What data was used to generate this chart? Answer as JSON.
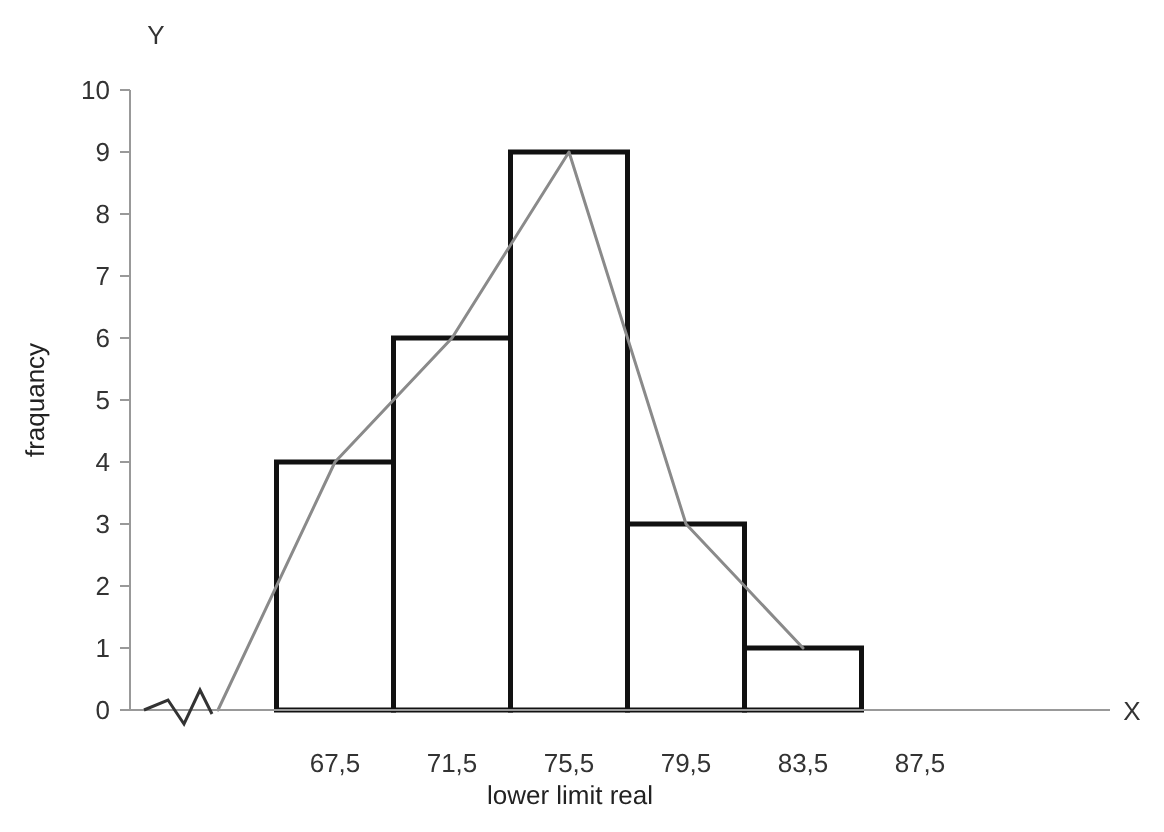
{
  "chart_data": {
    "type": "bar",
    "xlabel": "lower limit real",
    "ylabel": "fraquancy",
    "annotations": [
      "Y",
      "X"
    ],
    "categories": [
      null,
      "67,5",
      "71,5",
      "75,5",
      "79,5",
      "83,5",
      "87,5"
    ],
    "values": [
      null,
      4,
      6,
      9,
      3,
      1,
      null
    ],
    "color": "#ffffff",
    "series": [
      {
        "type": "line",
        "values": [
          0,
          4,
          6,
          9,
          3,
          1,
          null
        ],
        "color": "#8a8a8a"
      }
    ],
    "ylim": [
      0,
      10
    ],
    "yticks": [
      0,
      1,
      2,
      3,
      4,
      5,
      6,
      7,
      8,
      9,
      10
    ]
  }
}
